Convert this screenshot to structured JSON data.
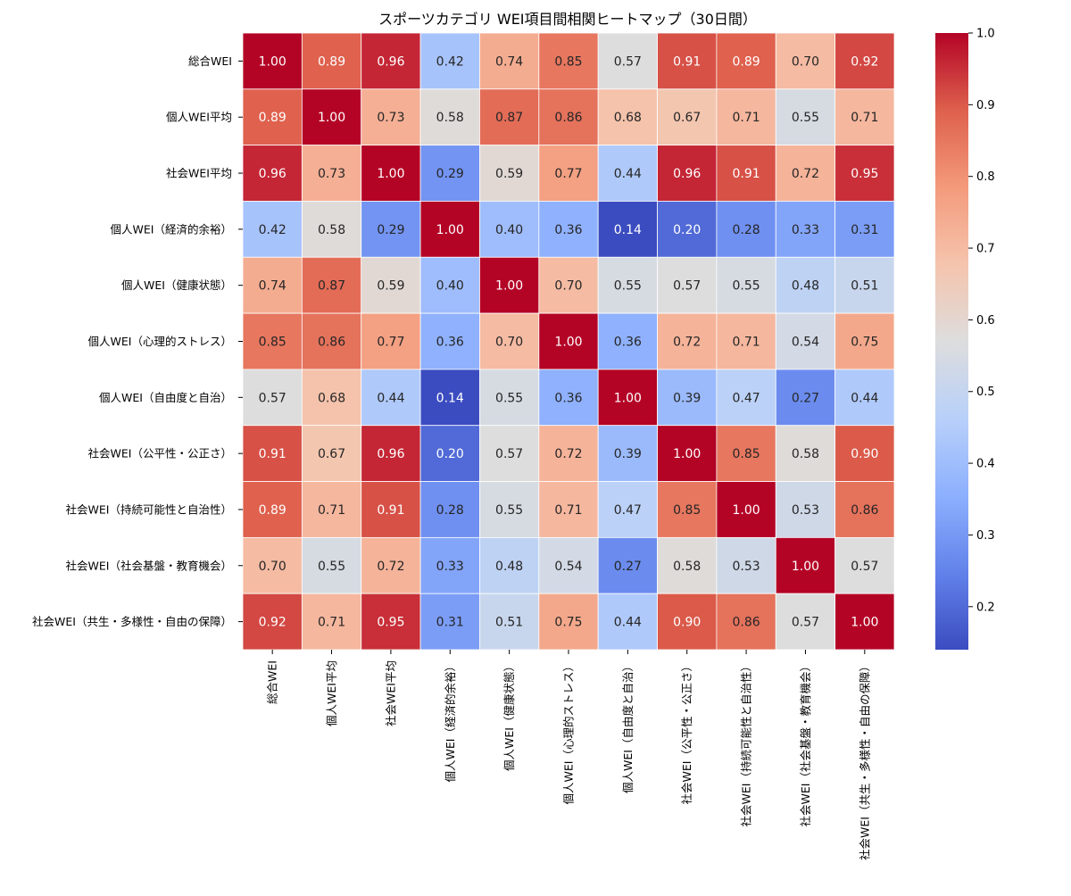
{
  "chart_data": {
    "type": "heatmap",
    "title": "スポーツカテゴリ WEI項目間相関ヒートマップ（30日間）",
    "xlabel": "",
    "ylabel": "",
    "colormap": "coolwarm",
    "categories": [
      "総合WEI",
      "個人WEI平均",
      "社会WEI平均",
      "個人WEI（経済的余裕）",
      "個人WEI（健康状態）",
      "個人WEI（心理的ストレス）",
      "個人WEI（自由度と自治）",
      "社会WEI（公平性・公正さ）",
      "社会WEI（持続可能性と自治性）",
      "社会WEI（社会基盤・教育機会）",
      "社会WEI（共生・多様性・自由の保障）"
    ],
    "values": [
      [
        1.0,
        0.89,
        0.96,
        0.42,
        0.74,
        0.85,
        0.57,
        0.91,
        0.89,
        0.7,
        0.92
      ],
      [
        0.89,
        1.0,
        0.73,
        0.58,
        0.87,
        0.86,
        0.68,
        0.67,
        0.71,
        0.55,
        0.71
      ],
      [
        0.96,
        0.73,
        1.0,
        0.29,
        0.59,
        0.77,
        0.44,
        0.96,
        0.91,
        0.72,
        0.95
      ],
      [
        0.42,
        0.58,
        0.29,
        1.0,
        0.4,
        0.36,
        0.14,
        0.2,
        0.28,
        0.33,
        0.31
      ],
      [
        0.74,
        0.87,
        0.59,
        0.4,
        1.0,
        0.7,
        0.55,
        0.57,
        0.55,
        0.48,
        0.51
      ],
      [
        0.85,
        0.86,
        0.77,
        0.36,
        0.7,
        1.0,
        0.36,
        0.72,
        0.71,
        0.54,
        0.75
      ],
      [
        0.57,
        0.68,
        0.44,
        0.14,
        0.55,
        0.36,
        1.0,
        0.39,
        0.47,
        0.27,
        0.44
      ],
      [
        0.91,
        0.67,
        0.96,
        0.2,
        0.57,
        0.72,
        0.39,
        1.0,
        0.85,
        0.58,
        0.9
      ],
      [
        0.89,
        0.71,
        0.91,
        0.28,
        0.55,
        0.71,
        0.47,
        0.85,
        1.0,
        0.53,
        0.86
      ],
      [
        0.7,
        0.55,
        0.72,
        0.33,
        0.48,
        0.54,
        0.27,
        0.58,
        0.53,
        1.0,
        0.57
      ],
      [
        0.92,
        0.71,
        0.95,
        0.31,
        0.51,
        0.75,
        0.44,
        0.9,
        0.86,
        0.57,
        1.0
      ]
    ],
    "vmin": 0.14,
    "vmax": 1.0,
    "colorbar_ticks": [
      0.2,
      0.3,
      0.4,
      0.5,
      0.6,
      0.7,
      0.8,
      0.9,
      1.0
    ],
    "colorbar_tick_labels": [
      "0.2",
      "0.3",
      "0.4",
      "0.5",
      "0.6",
      "0.7",
      "0.8",
      "0.9",
      "1.0"
    ],
    "value_format": "0.00",
    "cell_border_color": "#ffffff",
    "text_color_light": "#ffffff",
    "text_color_dark": "#262626"
  }
}
